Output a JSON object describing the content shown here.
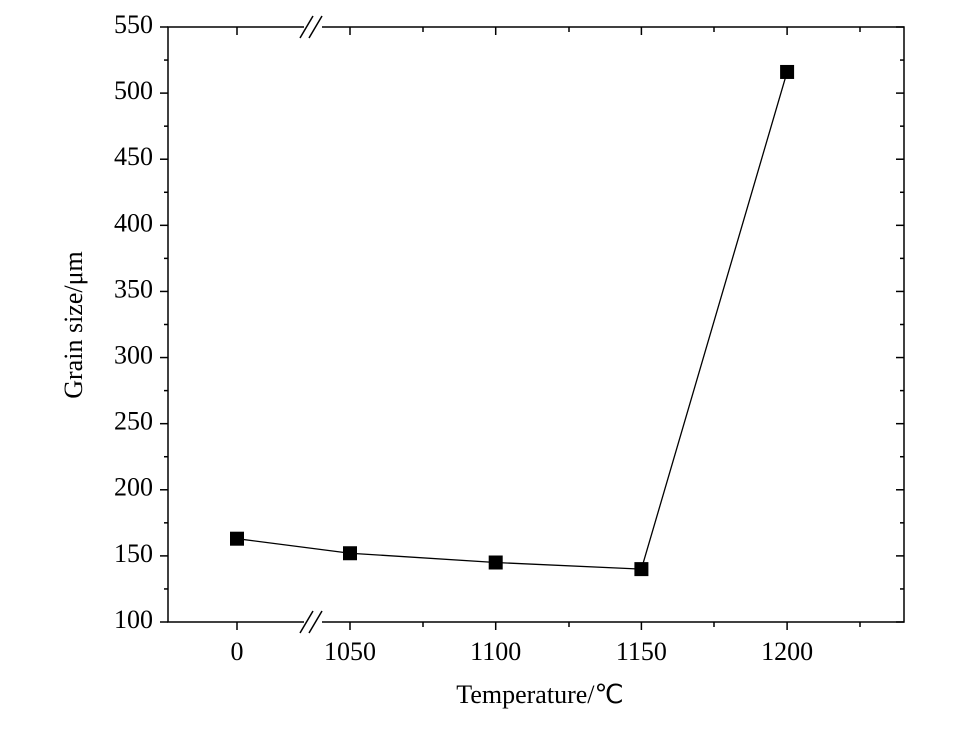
{
  "chart_data": {
    "type": "line",
    "x_label": "Temperature/℃",
    "y_label": "Grain size/μm",
    "categories": [
      "0",
      "1050",
      "1100",
      "1150",
      "1200"
    ],
    "series": [
      {
        "name": "Grain size",
        "color": "#000000",
        "values": [
          163,
          152,
          145,
          140,
          516
        ]
      }
    ],
    "ylim": [
      100,
      550
    ],
    "yticks": [
      100,
      150,
      200,
      250,
      300,
      350,
      400,
      450,
      500,
      550
    ],
    "x_axis_break": true
  }
}
